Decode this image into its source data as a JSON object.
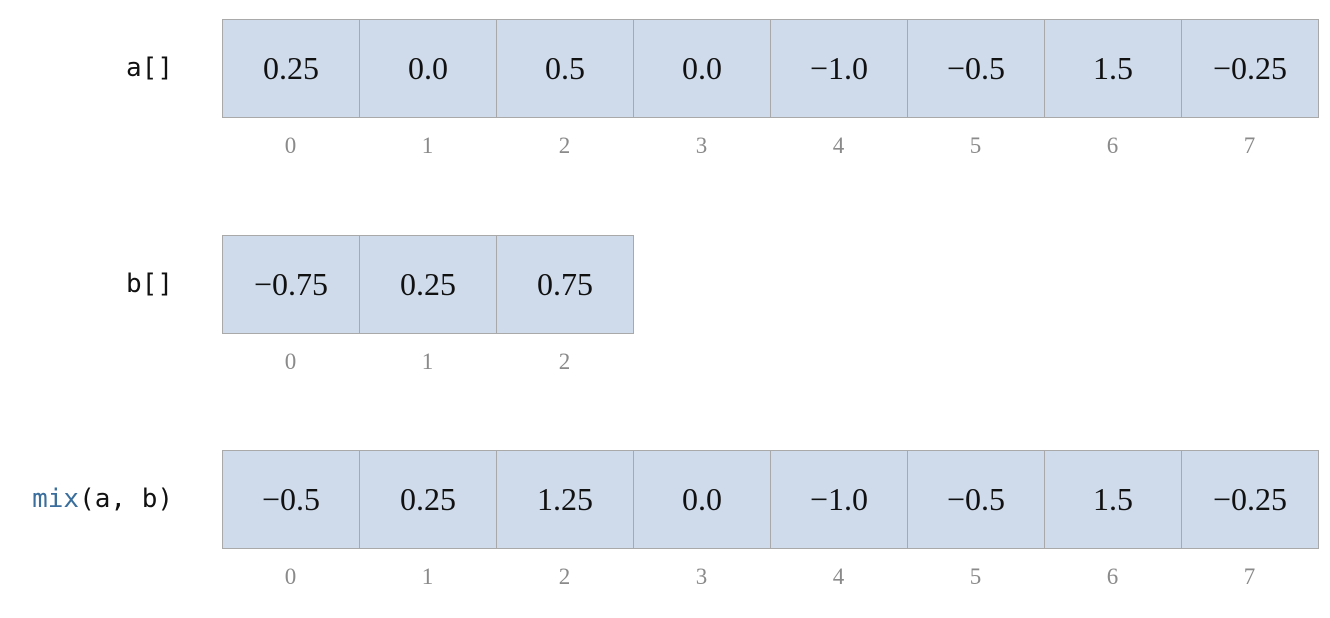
{
  "arrays": [
    {
      "label": "a[]",
      "values": [
        "0.25",
        "0.0",
        "0.5",
        "0.0",
        "−1.0",
        "−0.5",
        "1.5",
        "−0.25"
      ],
      "indices": [
        "0",
        "1",
        "2",
        "3",
        "4",
        "5",
        "6",
        "7"
      ]
    },
    {
      "label": "b[]",
      "values": [
        "−0.75",
        "0.25",
        "0.75"
      ],
      "indices": [
        "0",
        "1",
        "2"
      ]
    },
    {
      "label_fn": "mix",
      "label_args": "(a, b)",
      "values": [
        "−0.5",
        "0.25",
        "1.25",
        "0.0",
        "−1.0",
        "−0.5",
        "1.5",
        "−0.25"
      ],
      "indices": [
        "0",
        "1",
        "2",
        "3",
        "4",
        "5",
        "6",
        "7"
      ]
    }
  ],
  "colors": {
    "cell_fill": "#cfdbeb",
    "cell_border": "#a9a9a9",
    "index_text": "#8a8a8a",
    "fn_name": "#3a6e9c"
  }
}
